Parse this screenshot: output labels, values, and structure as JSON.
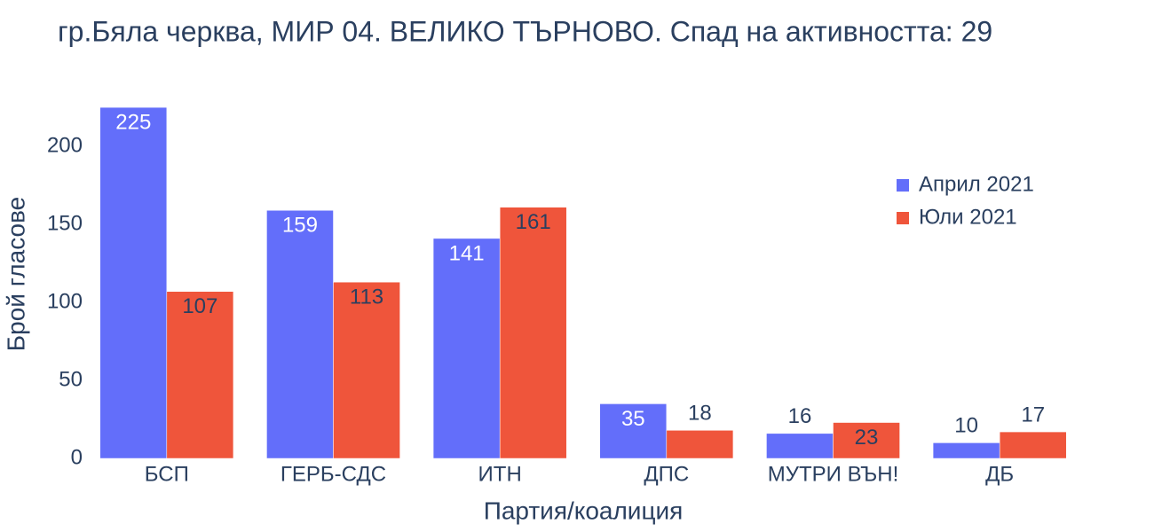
{
  "chart_data": {
    "type": "bar",
    "title": "гр.Бяла черква, МИР 04. ВЕЛИКО ТЪРНОВО. Спад на активността: 29",
    "x_label": "Партия/коалиция",
    "y_label": "Брой гласове",
    "categories": [
      "БСП",
      "ГЕРБ-СДС",
      "ИТН",
      "ДПС",
      "МУТРИ ВЪН!",
      "ДБ"
    ],
    "series": [
      {
        "name": "Април 2021",
        "color": "#636efa",
        "values": [
          225,
          159,
          141,
          35,
          16,
          10
        ]
      },
      {
        "name": "Юли 2021",
        "color": "#ef553b",
        "values": [
          107,
          113,
          161,
          18,
          23,
          17
        ]
      }
    ],
    "ylim": [
      0,
      237
    ],
    "yticks": [
      0,
      50,
      100,
      150,
      200
    ],
    "legend": "top-right"
  }
}
